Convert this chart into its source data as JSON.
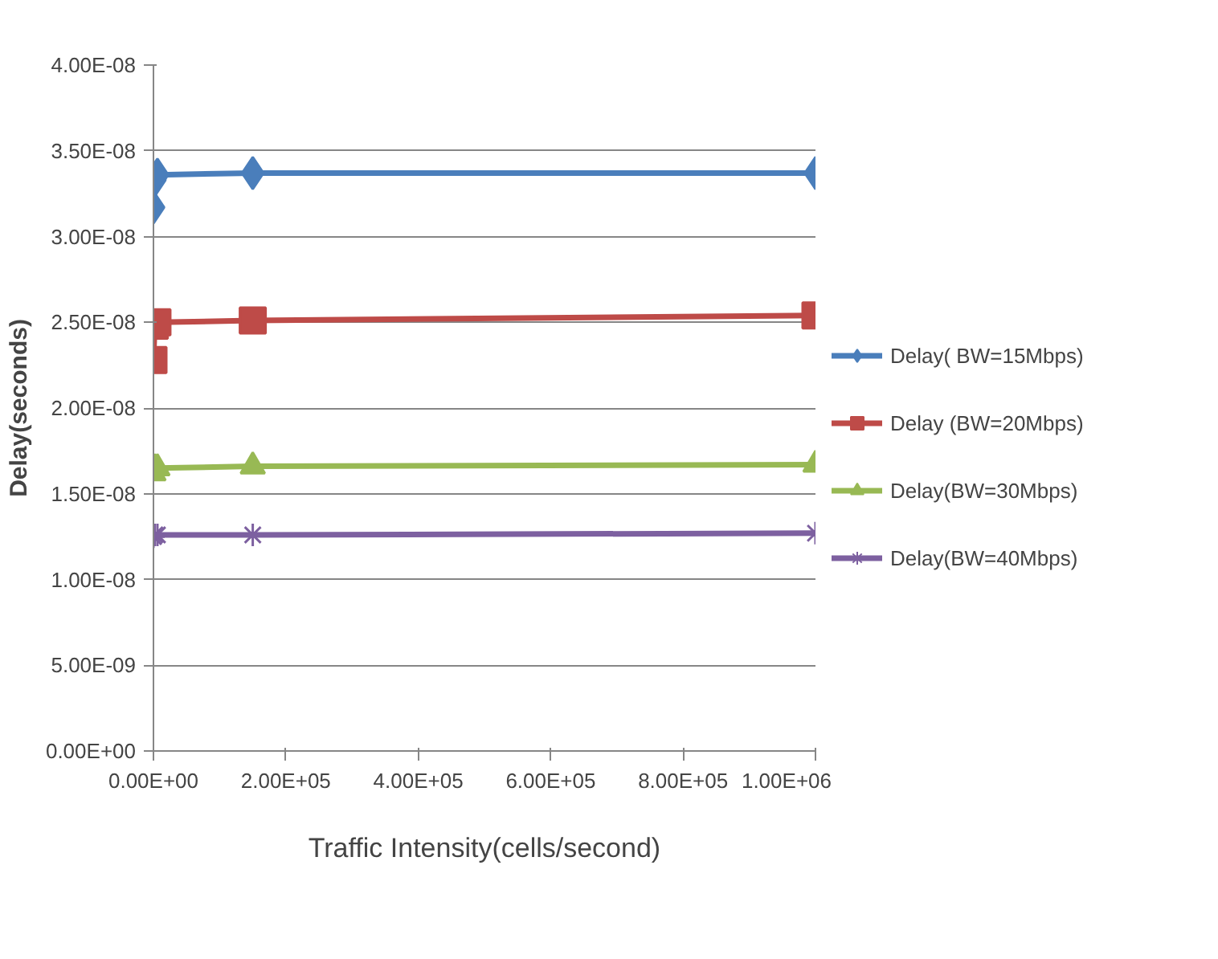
{
  "chart_data": {
    "type": "line",
    "xlabel": "Traffic Intensity(cells/second)",
    "ylabel": "Delay(seconds)",
    "xlim": [
      0,
      1000000
    ],
    "ylim": [
      0,
      4e-08
    ],
    "xticks": [
      {
        "value": 0,
        "label": "0.00E+00"
      },
      {
        "value": 200000,
        "label": "2.00E+05"
      },
      {
        "value": 400000,
        "label": "4.00E+05"
      },
      {
        "value": 600000,
        "label": "6.00E+05"
      },
      {
        "value": 800000,
        "label": "8.00E+05"
      },
      {
        "value": 1000000,
        "label": "1.00E+06"
      }
    ],
    "yticks": [
      {
        "value": 0,
        "label": "0.00E+00"
      },
      {
        "value": 5e-09,
        "label": "5.00E-09"
      },
      {
        "value": 1e-08,
        "label": "1.00E-08"
      },
      {
        "value": 1.5e-08,
        "label": "1.50E-08"
      },
      {
        "value": 2e-08,
        "label": "2.00E-08"
      },
      {
        "value": 2.5e-08,
        "label": "2.50E-08"
      },
      {
        "value": 3e-08,
        "label": "3.00E-08"
      },
      {
        "value": 3.5e-08,
        "label": "3.50E-08"
      },
      {
        "value": 4e-08,
        "label": "4.00E-08"
      }
    ],
    "x": [
      0,
      2000,
      6000,
      150000,
      1000000
    ],
    "grid": "y",
    "legend": "right",
    "series": [
      {
        "name": "Delay( BW=15Mbps)",
        "color": "#4a7ebb",
        "marker": "diamond",
        "values": [
          3.17e-08,
          3.33e-08,
          3.36e-08,
          3.37e-08,
          3.37e-08
        ]
      },
      {
        "name": "Delay (BW=20Mbps)",
        "color": "#be4b48",
        "marker": "square",
        "values": [
          2.28e-08,
          2.48e-08,
          2.5e-08,
          2.51e-08,
          2.54e-08
        ]
      },
      {
        "name": "Delay(BW=30Mbps)",
        "color": "#98b954",
        "marker": "triangle",
        "values": [
          1.62e-08,
          1.65e-08,
          1.65e-08,
          1.66e-08,
          1.67e-08
        ]
      },
      {
        "name": "Delay(BW=40Mbps)",
        "color": "#7d60a0",
        "marker": "cross",
        "values": [
          1.25e-08,
          1.26e-08,
          1.26e-08,
          1.26e-08,
          1.27e-08
        ]
      }
    ]
  }
}
